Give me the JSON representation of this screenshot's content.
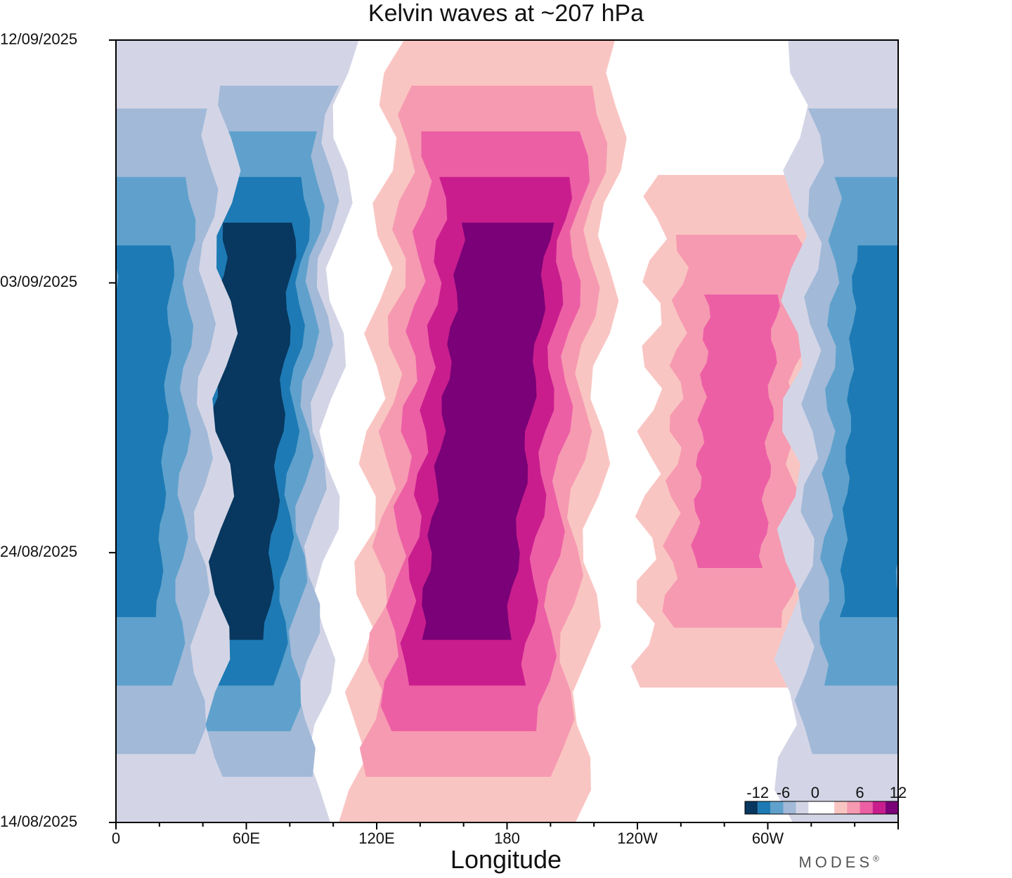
{
  "chart_data": {
    "type": "contour",
    "title": "Kelvin waves at ~207 hPa",
    "xlabel": "Longitude",
    "ylabel": "",
    "x_ticks": [
      {
        "lon": 0,
        "label": "0"
      },
      {
        "lon": 60,
        "label": "60E"
      },
      {
        "lon": 120,
        "label": "120E"
      },
      {
        "lon": 180,
        "label": "180"
      },
      {
        "lon": 240,
        "label": "120W"
      },
      {
        "lon": 300,
        "label": "60W"
      }
    ],
    "xlim": [
      0,
      360
    ],
    "y_ticks": [
      {
        "day": 0,
        "label": "14/08/2025"
      },
      {
        "day": 10,
        "label": "24/08/2025"
      },
      {
        "day": 20,
        "label": "03/09/2025"
      },
      {
        "day": 29,
        "label": "12/09/2025"
      }
    ],
    "ylim": [
      0,
      29
    ],
    "colorbar": {
      "labels": [
        "-12",
        "-6",
        "0",
        "6",
        "12"
      ],
      "levels": [
        -12,
        -10,
        -8,
        -6,
        -4,
        -2,
        2,
        4,
        6,
        8,
        10,
        12
      ],
      "colors": [
        "#08375f",
        "#1d7ab4",
        "#5fa1cc",
        "#a2b9d8",
        "#d3d5e6",
        "#ffffff",
        "#ffffff",
        "#f9c5c2",
        "#f69ab1",
        "#ec5fa5",
        "#c91d8d",
        "#7a0177"
      ]
    },
    "features": [
      {
        "kind": "negative",
        "lon": 60,
        "day_start": 0,
        "day_end": 29,
        "peak": -12
      },
      {
        "kind": "negative",
        "lon": 10,
        "day_start": 0,
        "day_end": 29,
        "peak": -8
      },
      {
        "kind": "positive",
        "lon": 170,
        "day_start": 0,
        "day_end": 29,
        "peak": 12
      },
      {
        "kind": "positive",
        "lon": 285,
        "day_start": 5,
        "day_end": 24,
        "peak": 6
      },
      {
        "kind": "negative",
        "lon": 350,
        "day_start": 0,
        "day_end": 29,
        "peak": -8
      }
    ]
  },
  "logo_text": "MODES",
  "logo_mark": "®"
}
